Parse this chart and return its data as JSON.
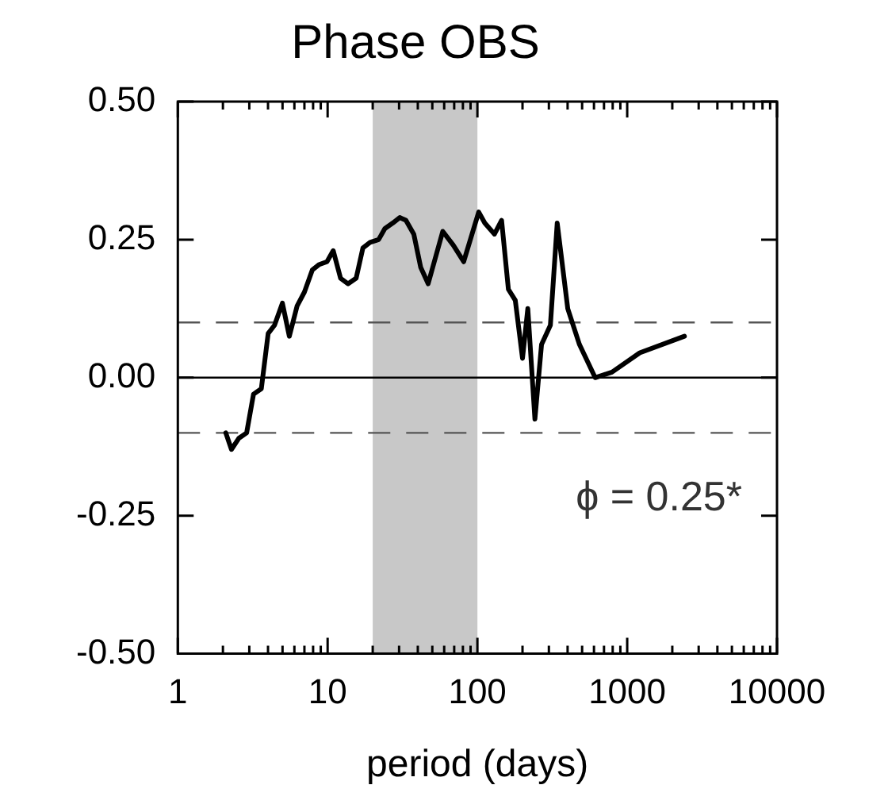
{
  "chart_data": {
    "type": "line",
    "title": "Phase OBS",
    "xlabel": "period (days)",
    "x": [
      2.09,
      2.28,
      2.55,
      2.88,
      3.2,
      3.61,
      4.01,
      4.42,
      4.99,
      5.55,
      6.26,
      7.0,
      7.9,
      8.8,
      9.9,
      10.9,
      12.2,
      13.7,
      15.5,
      17.2,
      19.2,
      21.9,
      24.1,
      27.2,
      30.3,
      33.3,
      37.6,
      41.8,
      46.9,
      58.7,
      69,
      81,
      102,
      112,
      130,
      145,
      161,
      179,
      200,
      217,
      242,
      268,
      307,
      341,
      401,
      480,
      611,
      791,
      1213,
      2410
    ],
    "series": [
      {
        "color": "#000000",
        "values": [
          -0.1,
          -0.13,
          -0.11,
          -0.1,
          -0.03,
          -0.02,
          0.08,
          0.095,
          0.135,
          0.075,
          0.13,
          0.155,
          0.195,
          0.205,
          0.21,
          0.23,
          0.18,
          0.17,
          0.18,
          0.235,
          0.245,
          0.25,
          0.27,
          0.28,
          0.29,
          0.285,
          0.26,
          0.2,
          0.17,
          0.265,
          0.24,
          0.21,
          0.3,
          0.28,
          0.26,
          0.285,
          0.16,
          0.14,
          0.035,
          0.125,
          -0.075,
          0.06,
          0.095,
          0.28,
          0.125,
          0.06,
          0,
          0.01,
          0.045,
          0.075
        ]
      }
    ],
    "log": "x",
    "xlim": [
      1,
      10000
    ],
    "xticks": [
      1,
      10,
      100,
      1000,
      10000
    ],
    "ylim": [
      -0.5,
      0.5
    ],
    "yticks": [
      {
        "value": -0.5,
        "label": "-0.50"
      },
      {
        "value": -0.25,
        "label": "-0.25"
      },
      {
        "value": 0,
        "label": "0.00"
      },
      {
        "value": 0.25,
        "label": "0.25"
      },
      {
        "value": 0.5,
        "label": "0.50"
      }
    ],
    "ref_lines": [
      {
        "axis": "y",
        "value": 0,
        "color": "#000000",
        "line_style": "solid"
      },
      {
        "axis": "y",
        "value": 0.1,
        "color": "#555555",
        "line_style": "dashed"
      },
      {
        "axis": "y",
        "value": -0.1,
        "color": "#555555",
        "line_style": "dashed"
      }
    ],
    "bands": [
      {
        "axis": "x",
        "from": 20,
        "to": 100,
        "color": "#c8c8c8"
      }
    ],
    "annotations": [
      "ϕ = 0.25*"
    ],
    "grid": false,
    "legend": false,
    "marker": "none",
    "line_style": "solid"
  }
}
